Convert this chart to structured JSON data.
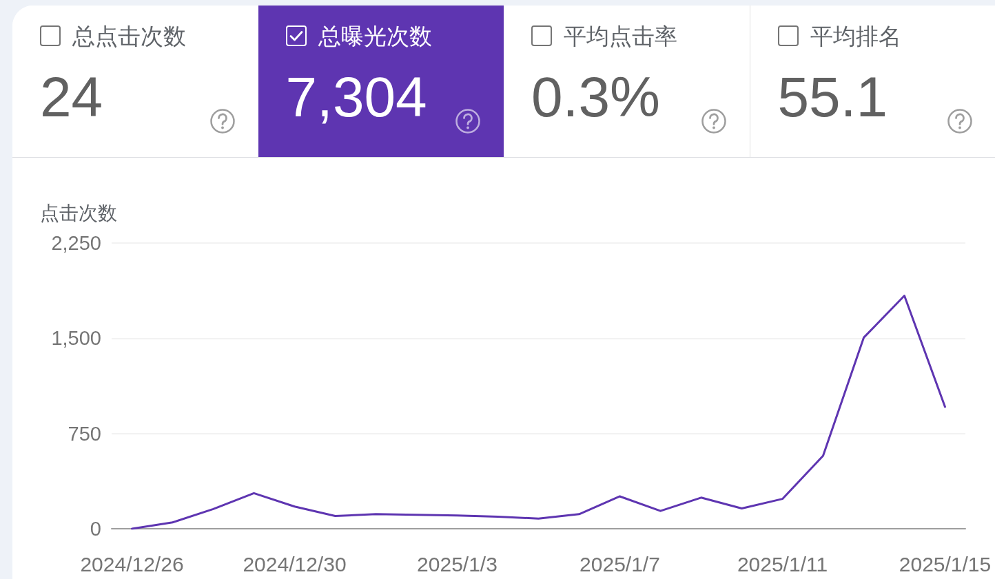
{
  "chart_data": [
    {
      "type": "other",
      "categories": [
        "总点击次数",
        "总曝光次数",
        "平均点击率",
        "平均排名"
      ],
      "value_labels": [
        "24",
        "7,304",
        "0.3%",
        "55.1"
      ],
      "colors": [
        "#ffffff",
        "#5e35b1",
        "#ffffff",
        "#ffffff"
      ]
    },
    {
      "type": "line",
      "ylabel": "点击次数",
      "categories": [
        "2024/12/26",
        null,
        null,
        null,
        "2024/12/30",
        null,
        null,
        null,
        "2025/1/3",
        null,
        null,
        null,
        "2025/1/7",
        null,
        null,
        null,
        "2025/1/11",
        null,
        null,
        null,
        "2025/1/15"
      ],
      "series": [
        {
          "color": "#5e35b1",
          "values": [
            0,
            50,
            155,
            280,
            175,
            100,
            115,
            110,
            105,
            95,
            80,
            115,
            255,
            140,
            245,
            160,
            235,
            575,
            1505,
            1835,
            960
          ]
        }
      ],
      "ylim": [
        0,
        2250
      ],
      "yticks": [
        0,
        750,
        {
          "value": 1500,
          "label": "1,500"
        },
        {
          "value": 2250,
          "label": "2,250"
        }
      ],
      "grid": "y",
      "marker": "none",
      "line_style": "solid"
    }
  ]
}
